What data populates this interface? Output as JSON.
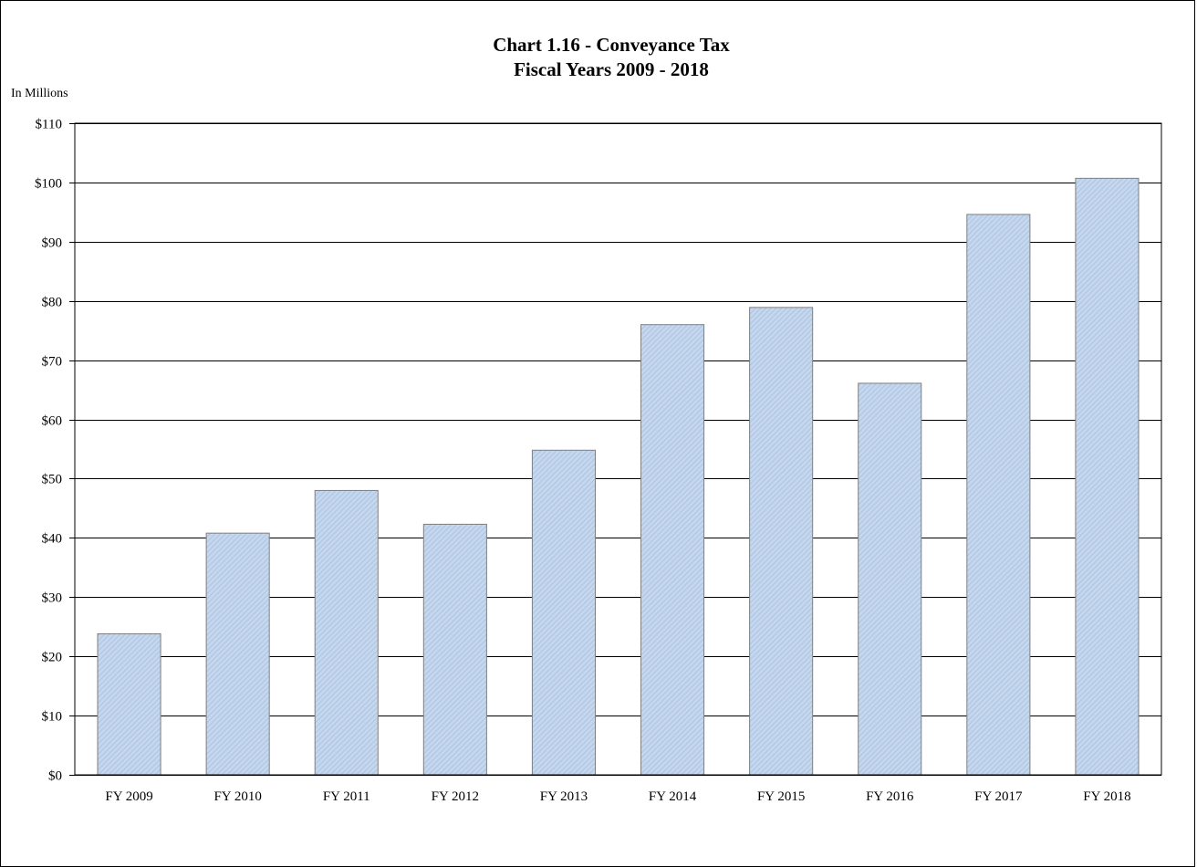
{
  "chart_data": {
    "type": "bar",
    "title": "Chart 1.16 - Conveyance Tax",
    "subtitle": "Fiscal Years 2009 - 2018",
    "units_label": "In Millions",
    "xlabel": "",
    "ylabel": "",
    "categories": [
      "FY 2009",
      "FY 2010",
      "FY 2011",
      "FY 2012",
      "FY 2013",
      "FY 2014",
      "FY 2015",
      "FY 2016",
      "FY 2017",
      "FY 2018"
    ],
    "values": [
      23.8,
      40.8,
      48.0,
      42.3,
      54.8,
      76.0,
      78.9,
      66.1,
      94.6,
      100.7
    ],
    "ylim": [
      0,
      110
    ],
    "ytick_step": 10,
    "ytick_prefix": "$",
    "grid": true,
    "legend": "none",
    "colors": {
      "bar_fill": "#c4d7ee",
      "bar_hatch": "#a7bedb",
      "bar_stroke": "#7f7f7f",
      "grid": "#000000",
      "axis": "#000000"
    }
  }
}
